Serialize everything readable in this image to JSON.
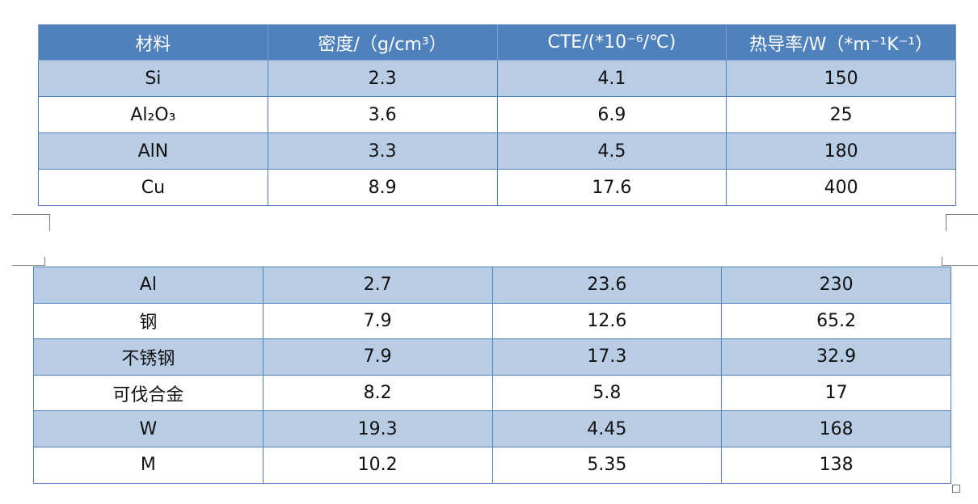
{
  "table1": {
    "header": [
      "材料",
      "密度/（g/cm³）",
      "CTE/(*10⁻⁶/℃)",
      "热导率/W（*m⁻¹K⁻¹）"
    ],
    "rows": [
      [
        "Si",
        "2.3",
        "4.1",
        "150"
      ],
      [
        "Al₂O₃",
        "3.6",
        "6.9",
        "25"
      ],
      [
        "AlN",
        "3.3",
        "4.5",
        "180"
      ],
      [
        "Cu",
        "8.9",
        "17.6",
        "400"
      ]
    ]
  },
  "table2": {
    "rows": [
      [
        "Al",
        "2.7",
        "23.6",
        "230"
      ],
      [
        "钢",
        "7.9",
        "12.6",
        "65.2"
      ],
      [
        "不锈钢",
        "7.9",
        "17.3",
        "32.9"
      ],
      [
        "可伐合金",
        "8.2",
        "5.8",
        "17"
      ],
      [
        "W",
        "19.3",
        "4.45",
        "168"
      ],
      [
        "M",
        "10.2",
        "5.35",
        "138"
      ]
    ]
  }
}
